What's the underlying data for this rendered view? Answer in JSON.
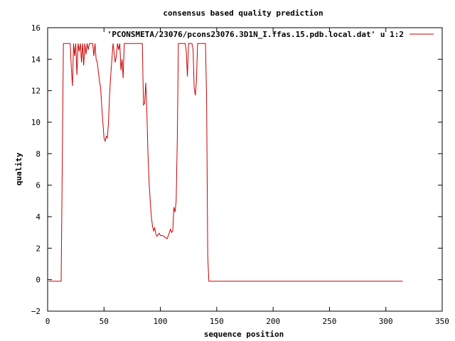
{
  "chart_data": {
    "type": "line",
    "title": "consensus based quality prediction",
    "xlabel": "sequence position",
    "ylabel": "quality",
    "xlim": [
      0,
      350
    ],
    "ylim": [
      -2,
      16
    ],
    "xticks": [
      0,
      50,
      100,
      150,
      200,
      250,
      300,
      350
    ],
    "yticks": [
      -2,
      0,
      2,
      4,
      6,
      8,
      10,
      12,
      14,
      16
    ],
    "grid": false,
    "legend_position": "top-right",
    "series": [
      {
        "name": "'PCONSMETA/23076/pcons23076.3D1N_I.ffas.15.pdb.local.dat' u 1:2",
        "color": "#cc0000",
        "points": [
          [
            1,
            -0.1
          ],
          [
            12,
            -0.1
          ],
          [
            13,
            7.5
          ],
          [
            14,
            15
          ],
          [
            20,
            15
          ],
          [
            21,
            13.5
          ],
          [
            22,
            12.3
          ],
          [
            23,
            15
          ],
          [
            24,
            14.2
          ],
          [
            25,
            15
          ],
          [
            26,
            13.0
          ],
          [
            27,
            15
          ],
          [
            28,
            14.5
          ],
          [
            29,
            15
          ],
          [
            30,
            13.8
          ],
          [
            31,
            15
          ],
          [
            32,
            13.6
          ],
          [
            33,
            15
          ],
          [
            34,
            14.3
          ],
          [
            35,
            15
          ],
          [
            36,
            14.6
          ],
          [
            37,
            15
          ],
          [
            40,
            15
          ],
          [
            41,
            14.2
          ],
          [
            42,
            15
          ],
          [
            43,
            14.0
          ],
          [
            44,
            13.8
          ],
          [
            45,
            13.2
          ],
          [
            46,
            12.6
          ],
          [
            47,
            12.2
          ],
          [
            48,
            11.0
          ],
          [
            49,
            10.0
          ],
          [
            50,
            9.0
          ],
          [
            51,
            8.8
          ],
          [
            52,
            9.1
          ],
          [
            53,
            9.0
          ],
          [
            54,
            10.0
          ],
          [
            55,
            11.8
          ],
          [
            56,
            13.0
          ],
          [
            57,
            14.0
          ],
          [
            58,
            15
          ],
          [
            59,
            14.4
          ],
          [
            60,
            13.8
          ],
          [
            61,
            14.2
          ],
          [
            62,
            15
          ],
          [
            63,
            14.6
          ],
          [
            64,
            15
          ],
          [
            65,
            13.3
          ],
          [
            66,
            14.0
          ],
          [
            67,
            12.8
          ],
          [
            68,
            15
          ],
          [
            70,
            15
          ],
          [
            83,
            15
          ],
          [
            84,
            15
          ],
          [
            85,
            11.1
          ],
          [
            86,
            11.2
          ],
          [
            87,
            12.5
          ],
          [
            88,
            10.8
          ],
          [
            89,
            8.0
          ],
          [
            90,
            6.2
          ],
          [
            91,
            5.0
          ],
          [
            92,
            4.0
          ],
          [
            93,
            3.4
          ],
          [
            94,
            3.1
          ],
          [
            95,
            3.3
          ],
          [
            96,
            2.9
          ],
          [
            97,
            2.75
          ],
          [
            98,
            2.85
          ],
          [
            99,
            2.95
          ],
          [
            100,
            2.8
          ],
          [
            102,
            2.8
          ],
          [
            104,
            2.7
          ],
          [
            106,
            2.6
          ],
          [
            107,
            2.8
          ],
          [
            108,
            3.0
          ],
          [
            109,
            3.2
          ],
          [
            110,
            3.0
          ],
          [
            111,
            3.1
          ],
          [
            112,
            4.6
          ],
          [
            113,
            4.3
          ],
          [
            114,
            5.0
          ],
          [
            115,
            9.0
          ],
          [
            116,
            15
          ],
          [
            117,
            15
          ],
          [
            122,
            15
          ],
          [
            123,
            14.5
          ],
          [
            124,
            12.9
          ],
          [
            125,
            15
          ],
          [
            128,
            15
          ],
          [
            129,
            14.6
          ],
          [
            130,
            12.2
          ],
          [
            131,
            11.7
          ],
          [
            132,
            12.6
          ],
          [
            133,
            15
          ],
          [
            135,
            15
          ],
          [
            140,
            15
          ],
          [
            141,
            11.5
          ],
          [
            142,
            1.5
          ],
          [
            143,
            -0.1
          ],
          [
            315,
            -0.1
          ]
        ]
      }
    ]
  }
}
